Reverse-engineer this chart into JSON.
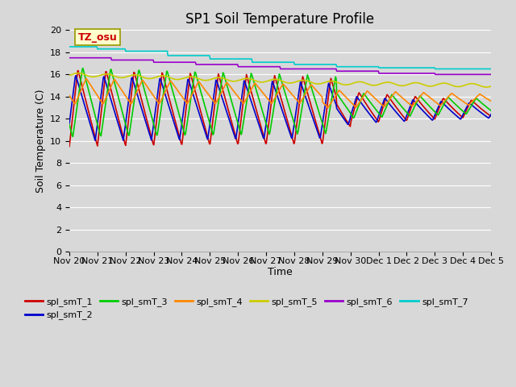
{
  "title": "SP1 Soil Temperature Profile",
  "xlabel": "Time",
  "ylabel": "Soil Temperature (C)",
  "ylim": [
    0,
    20
  ],
  "yticks": [
    0,
    2,
    4,
    6,
    8,
    10,
    12,
    14,
    16,
    18,
    20
  ],
  "xtick_labels": [
    "Nov 20",
    "Nov 21",
    "Nov 22",
    "Nov 23",
    "Nov 24",
    "Nov 25",
    "Nov 26",
    "Nov 27",
    "Nov 28",
    "Nov 29",
    "Nov 30",
    "Dec 1",
    "Dec 2",
    "Dec 3",
    "Dec 4",
    "Dec 5"
  ],
  "series_colors": {
    "spl_smT_1": "#cc0000",
    "spl_smT_2": "#0000cc",
    "spl_smT_3": "#00cc00",
    "spl_smT_4": "#ff8800",
    "spl_smT_5": "#cccc00",
    "spl_smT_6": "#9900cc",
    "spl_smT_7": "#00cccc"
  },
  "annotation_text": "TZ_osu",
  "annotation_color": "#cc0000",
  "annotation_bg": "#ffffcc",
  "bg_color": "#d8d8d8",
  "axes_bg": "#d8d8d8",
  "grid_color": "#ffffff",
  "title_fontsize": 12,
  "label_fontsize": 9,
  "tick_fontsize": 8,
  "legend_fontsize": 8
}
